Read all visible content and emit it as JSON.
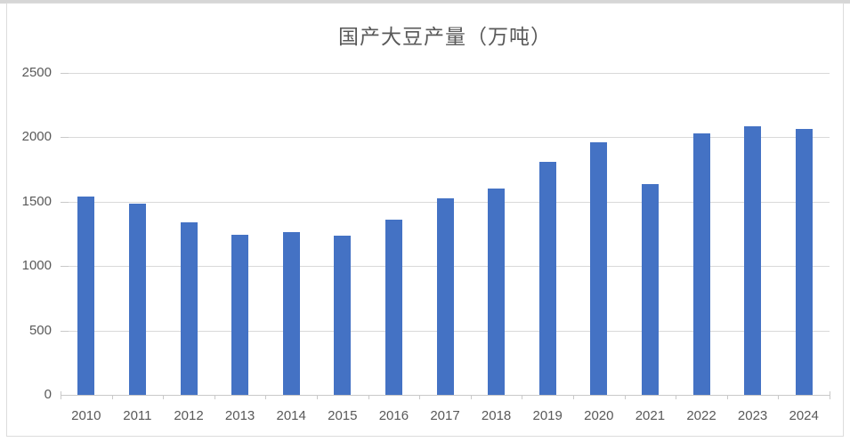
{
  "title": "国产大豆产量（万吨）",
  "chart_data": {
    "type": "bar",
    "title": "国产大豆产量（万吨）",
    "categories": [
      "2010",
      "2011",
      "2012",
      "2013",
      "2014",
      "2015",
      "2016",
      "2017",
      "2018",
      "2019",
      "2020",
      "2021",
      "2022",
      "2023",
      "2024"
    ],
    "values": [
      1540,
      1485,
      1340,
      1240,
      1265,
      1237,
      1360,
      1528,
      1600,
      1810,
      1960,
      1640,
      2028,
      2084,
      2065
    ],
    "xlabel": "",
    "ylabel": "",
    "ylim": [
      0,
      2500
    ],
    "y_ticks": [
      0,
      500,
      1000,
      1500,
      2000,
      2500
    ],
    "grid": true,
    "legend_position": "none",
    "bar_color": "#4472C4",
    "gridline_color": "#D9D9D9",
    "axis_line_color": "#C9C9C9",
    "label_color": "#595959",
    "title_color": "#595959",
    "frame_border_color": "#DCDCDC"
  }
}
